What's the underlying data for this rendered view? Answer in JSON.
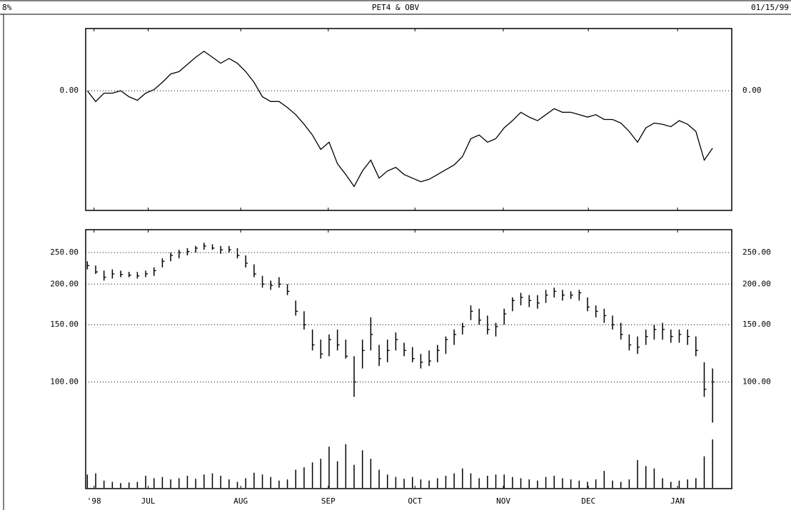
{
  "header": {
    "left": "8%",
    "title": "PET4 & OBV",
    "date": "01/15/99"
  },
  "chart_data": [
    {
      "type": "line",
      "color": "#000000",
      "grid": true,
      "xlim": [
        -0.2,
        77.3
      ],
      "ylim": [
        -1.0,
        0.52
      ],
      "yticks": [
        {
          "value": 0,
          "label": "0.00"
        }
      ],
      "values": [
        0,
        -0.09,
        -0.02,
        -0.02,
        0,
        -0.05,
        -0.08,
        -0.02,
        0.01,
        0.07,
        0.14,
        0.16,
        0.22,
        0.28,
        0.33,
        0.28,
        0.23,
        0.27,
        0.23,
        0.16,
        0.07,
        -0.05,
        -0.09,
        -0.09,
        -0.14,
        -0.2,
        -0.28,
        -0.37,
        -0.49,
        -0.43,
        -0.61,
        -0.7,
        -0.8,
        -0.67,
        -0.58,
        -0.73,
        -0.67,
        -0.64,
        -0.7,
        -0.73,
        -0.76,
        -0.74,
        -0.7,
        -0.66,
        -0.62,
        -0.55,
        -0.4,
        -0.37,
        -0.43,
        -0.4,
        -0.31,
        -0.25,
        -0.18,
        -0.22,
        -0.25,
        -0.2,
        -0.15,
        -0.18,
        -0.18,
        -0.2,
        -0.22,
        -0.2,
        -0.24,
        -0.24,
        -0.27,
        -0.34,
        -0.43,
        -0.31,
        -0.27,
        -0.28,
        -0.3,
        -0.25,
        -0.28,
        -0.34,
        -0.58,
        -0.48
      ]
    },
    {
      "type": "ohlc",
      "color": "#000000",
      "grid": true,
      "log_scale": true,
      "xlim": [
        -0.2,
        77.3
      ],
      "ylim": [
        47,
        294
      ],
      "yticks": [
        {
          "value": 250,
          "label": "250.00"
        },
        {
          "value": 200,
          "label": "200.00"
        },
        {
          "value": 150,
          "label": "150.00"
        },
        {
          "value": 100,
          "label": "100.00"
        }
      ],
      "xticks": [
        {
          "value": 0.8,
          "label": "'98"
        },
        {
          "value": 7.3,
          "label": "JUL"
        },
        {
          "value": 18.4,
          "label": "AUG"
        },
        {
          "value": 28.9,
          "label": "SEP"
        },
        {
          "value": 39.3,
          "label": "OCT"
        },
        {
          "value": 49.9,
          "label": "NOV"
        },
        {
          "value": 60.1,
          "label": "DEC"
        },
        {
          "value": 70.8,
          "label": "JAN"
        }
      ],
      "high": [
        235,
        228,
        220,
        222,
        220,
        218,
        218,
        220,
        225,
        240,
        250,
        255,
        258,
        262,
        268,
        265,
        262,
        262,
        258,
        245,
        230,
        212,
        205,
        210,
        200,
        178,
        165,
        145,
        135,
        140,
        145,
        135,
        120,
        135,
        158,
        130,
        135,
        142,
        132,
        128,
        122,
        125,
        130,
        138,
        145,
        152,
        172,
        168,
        160,
        152,
        168,
        182,
        188,
        185,
        185,
        192,
        195,
        192,
        190,
        192,
        182,
        172,
        168,
        160,
        152,
        140,
        138,
        145,
        150,
        152,
        145,
        145,
        145,
        138,
        115,
        110
      ],
      "low": [
        222,
        215,
        205,
        208,
        210,
        210,
        208,
        210,
        212,
        225,
        235,
        240,
        245,
        250,
        255,
        255,
        248,
        250,
        240,
        225,
        210,
        195,
        192,
        195,
        185,
        160,
        145,
        125,
        118,
        120,
        125,
        118,
        90,
        110,
        125,
        112,
        115,
        125,
        120,
        115,
        110,
        112,
        115,
        122,
        130,
        140,
        155,
        150,
        140,
        138,
        150,
        165,
        172,
        170,
        168,
        175,
        182,
        178,
        180,
        178,
        165,
        158,
        152,
        145,
        135,
        125,
        122,
        130,
        135,
        135,
        132,
        132,
        130,
        120,
        90,
        75
      ],
      "close": [
        228,
        218,
        210,
        215,
        214,
        213,
        212,
        215,
        220,
        235,
        245,
        250,
        252,
        258,
        262,
        258,
        255,
        255,
        245,
        232,
        215,
        200,
        198,
        200,
        190,
        165,
        150,
        130,
        122,
        135,
        130,
        120,
        100,
        125,
        140,
        118,
        125,
        135,
        125,
        118,
        115,
        116,
        125,
        135,
        140,
        148,
        165,
        155,
        145,
        148,
        162,
        178,
        182,
        178,
        175,
        185,
        190,
        185,
        185,
        188,
        170,
        165,
        160,
        150,
        140,
        130,
        128,
        138,
        145,
        145,
        138,
        140,
        138,
        125,
        95,
        100
      ],
      "vlim": [
        0,
        100
      ],
      "volume": [
        22,
        24,
        12,
        10,
        8,
        9,
        10,
        20,
        16,
        18,
        14,
        16,
        20,
        15,
        22,
        24,
        20,
        14,
        10,
        16,
        25,
        22,
        18,
        12,
        14,
        30,
        34,
        42,
        48,
        68,
        44,
        72,
        38,
        62,
        48,
        30,
        22,
        18,
        15,
        18,
        14,
        12,
        16,
        20,
        24,
        32,
        24,
        16,
        20,
        22,
        22,
        18,
        16,
        14,
        12,
        18,
        20,
        16,
        14,
        12,
        10,
        14,
        28,
        12,
        10,
        14,
        46,
        36,
        32,
        16,
        10,
        12,
        14,
        16,
        52,
        80
      ]
    }
  ]
}
